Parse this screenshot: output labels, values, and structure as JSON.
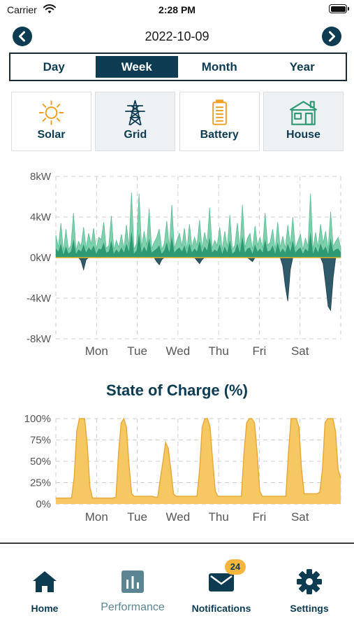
{
  "status_bar": {
    "carrier": "Carrier",
    "time": "2:28 PM"
  },
  "date_nav": {
    "date": "2022-10-09",
    "prev_icon": "chevron-left-icon",
    "next_icon": "chevron-right-icon"
  },
  "period_tabs": [
    {
      "label": "Day",
      "active": false
    },
    {
      "label": "Week",
      "active": true
    },
    {
      "label": "Month",
      "active": false
    },
    {
      "label": "Year",
      "active": false
    }
  ],
  "source_cards": [
    {
      "label": "Solar",
      "icon": "sun-icon",
      "selected": false
    },
    {
      "label": "Grid",
      "icon": "power-tower-icon",
      "selected": true
    },
    {
      "label": "Battery",
      "icon": "battery-icon",
      "selected": false
    },
    {
      "label": "House",
      "icon": "house-icon",
      "selected": true
    }
  ],
  "colors": {
    "primary": "#0c3b52",
    "solar": "#f0a020",
    "grid_fill": "#2e9a74",
    "house_fill": "#7ecfac",
    "grid_export": "#2f5a6a",
    "battery_soc": "#f6c862",
    "soc_line": "#e8a93a"
  },
  "chart_data": [
    {
      "type": "area",
      "y_tick_labels": [
        "8kW",
        "4kW",
        "0kW",
        "-4kW",
        "-8kW"
      ],
      "ylim": [
        -8,
        8
      ],
      "y_unit": "kW",
      "x_tick_labels": [
        "Mon",
        "Tue",
        "Wed",
        "Thu",
        "Fri",
        "Sat"
      ],
      "x_days": 7,
      "grid": true,
      "series": [
        {
          "values": [
            2.2,
            1.0,
            3.4,
            0.6,
            2.8,
            0.8,
            1.2,
            4.4,
            0.7,
            1.6,
            1.1,
            3.0,
            0.9,
            2.4,
            1.3,
            2.9,
            0.8,
            2.0,
            1.8,
            3.5,
            0.9,
            1.2,
            4.1,
            0.8,
            1.7,
            1.0,
            2.3,
            0.9,
            3.2,
            1.1,
            6.4,
            0.8,
            1.4,
            6.3,
            1.0,
            2.6,
            1.2,
            4.8,
            0.9,
            1.5,
            2.0,
            2.8,
            0.8,
            1.4,
            3.6,
            1.0,
            5.2,
            0.9,
            1.7,
            2.4,
            1.1,
            2.9,
            0.8,
            3.3,
            1.0,
            2.0,
            1.2,
            3.7,
            0.9,
            2.5,
            1.4,
            4.9,
            0.9,
            1.7,
            1.2,
            3.0,
            0.8,
            2.6,
            1.0,
            4.2,
            0.8,
            1.2,
            3.4,
            0.9,
            5.2,
            1.0,
            1.9,
            2.4,
            0.8,
            3.1,
            1.2,
            2.0,
            0.9,
            4.4,
            1.2,
            1.5,
            2.8,
            0.8,
            3.5,
            1.0,
            2.1,
            0.9,
            3.2,
            1.2,
            4.0,
            0.9,
            1.6,
            2.3,
            0.8,
            1.9,
            1.1,
            6.3,
            0.8,
            2.5,
            1.0,
            3.3,
            1.4,
            2.6,
            0.8,
            4.5,
            1.1,
            1.6,
            2.0,
            1.0
          ]
        },
        {
          "values": [
            0.9,
            0.6,
            1.4,
            0.3,
            1.1,
            0.4,
            0.6,
            1.8,
            0.4,
            0.8,
            0.6,
            1.3,
            0.5,
            1.0,
            0.7,
            1.2,
            0.4,
            0.9,
            0.8,
            1.5,
            0.5,
            0.6,
            1.7,
            0.4,
            0.8,
            0.5,
            1.0,
            0.5,
            1.4,
            0.6,
            2.6,
            0.4,
            0.7,
            2.4,
            0.5,
            1.1,
            0.6,
            1.9,
            0.5,
            0.7,
            0.9,
            1.2,
            0.4,
            0.7,
            1.5,
            0.5,
            2.1,
            0.5,
            0.8,
            1.0,
            0.6,
            1.2,
            0.4,
            1.4,
            0.5,
            0.9,
            0.6,
            1.6,
            0.5,
            1.1,
            0.7,
            2.0,
            0.5,
            0.8,
            0.6,
            1.3,
            0.4,
            1.1,
            0.5,
            1.7,
            0.4,
            0.6,
            1.4,
            0.5,
            2.1,
            0.5,
            0.9,
            1.0,
            0.4,
            1.3,
            0.6,
            0.9,
            0.5,
            1.8,
            0.6,
            0.7,
            1.2,
            0.4,
            1.5,
            0.5,
            0.9,
            0.5,
            1.4,
            0.6,
            1.7,
            0.5,
            0.8,
            1.0,
            0.4,
            0.9,
            0.6,
            2.5,
            0.4,
            1.1,
            0.5,
            1.4,
            0.7,
            1.1,
            0.4,
            1.9,
            0.6,
            0.8,
            0.9,
            0.5
          ]
        },
        {
          "values": [
            0,
            0,
            0,
            0,
            0,
            0,
            0,
            0,
            0,
            0,
            -0.3,
            -1.2,
            -0.2,
            0,
            0,
            0,
            0,
            0,
            0,
            0,
            0,
            0,
            0,
            0,
            0,
            0,
            0,
            0,
            0,
            0,
            0,
            0,
            0,
            0,
            0,
            0,
            0,
            0,
            0,
            0,
            -0.4,
            -0.7,
            -0.2,
            0,
            0,
            0,
            0,
            0,
            0,
            0,
            0,
            0,
            0,
            0,
            0,
            0,
            -0.3,
            -0.6,
            -0.2,
            0,
            0,
            0,
            0,
            0,
            0,
            0,
            0,
            0,
            0,
            0,
            0,
            0,
            0,
            0,
            0,
            0,
            0,
            -0.2,
            -0.4,
            0,
            0,
            0,
            0,
            0,
            0,
            0,
            0,
            0,
            0,
            0,
            -0.8,
            -2.8,
            -4.3,
            -1.2,
            0,
            0,
            0,
            0,
            0,
            0,
            0,
            0,
            0,
            0,
            0,
            0,
            -0.6,
            -2.6,
            -4.8,
            -5.2,
            -2.0,
            0,
            0,
            0
          ]
        }
      ]
    },
    {
      "type": "area",
      "title": "State of Charge (%)",
      "y_tick_labels": [
        "100%",
        "75%",
        "50%",
        "25%",
        "0%"
      ],
      "ylim": [
        0,
        100
      ],
      "x_tick_labels": [
        "Mon",
        "Tue",
        "Wed",
        "Thu",
        "Fri",
        "Sat"
      ],
      "x_days": 7,
      "grid": true,
      "values": [
        7,
        7,
        7,
        7,
        7,
        7,
        7,
        30,
        85,
        100,
        100,
        100,
        70,
        20,
        7,
        7,
        7,
        7,
        7,
        7,
        7,
        7,
        7,
        8,
        60,
        95,
        100,
        90,
        45,
        12,
        9,
        9,
        9,
        9,
        9,
        9,
        9,
        9,
        8,
        8,
        30,
        50,
        72,
        65,
        40,
        12,
        9,
        9,
        9,
        9,
        9,
        9,
        9,
        9,
        9,
        40,
        90,
        100,
        100,
        90,
        50,
        15,
        9,
        9,
        9,
        9,
        9,
        9,
        9,
        9,
        9,
        9,
        60,
        95,
        100,
        100,
        95,
        60,
        15,
        9,
        9,
        9,
        9,
        9,
        9,
        9,
        9,
        9,
        9,
        60,
        100,
        100,
        100,
        90,
        40,
        12,
        12,
        12,
        12,
        12,
        12,
        14,
        40,
        95,
        100,
        100,
        100,
        85,
        40,
        30
      ]
    }
  ],
  "tab_bar": {
    "items": [
      {
        "label": "Home",
        "icon": "home-icon",
        "active": false
      },
      {
        "label": "Performance",
        "icon": "bar-chart-icon",
        "active": true
      },
      {
        "label": "Notifications",
        "icon": "envelope-icon",
        "active": false,
        "badge": "24"
      },
      {
        "label": "Settings",
        "icon": "gear-icon",
        "active": false
      }
    ]
  }
}
